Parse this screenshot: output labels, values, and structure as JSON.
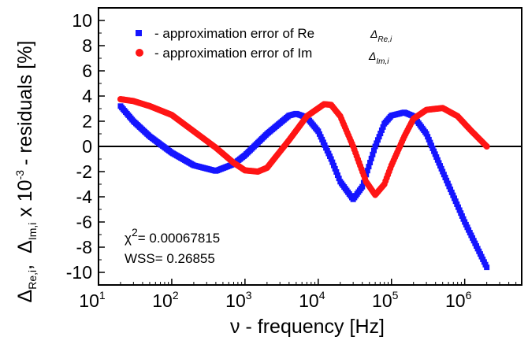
{
  "chart_data": {
    "type": "scatter",
    "x_scale": "log",
    "xlim": [
      10,
      6000000
    ],
    "ylim": [
      -11,
      11
    ],
    "xlabel": "ν - frequency   [Hz]",
    "ylabel": "Δ_Re,i ,  Δ_Im,i x 10^-3 - residuals  [%]",
    "ylabel_parts": {
      "re_main": "Δ",
      "re_sub": "Re,i",
      "sep": ",",
      "im_main": "Δ",
      "im_sub": "Im,i",
      "mid": " x 10",
      "exp": "-3",
      "tail": "- residuals  [%]"
    },
    "x_ticks": [
      {
        "value": 10,
        "base": "10",
        "exp": "1"
      },
      {
        "value": 100,
        "base": "10",
        "exp": "2"
      },
      {
        "value": 1000,
        "base": "10",
        "exp": "3"
      },
      {
        "value": 10000,
        "base": "10",
        "exp": "4"
      },
      {
        "value": 100000,
        "base": "10",
        "exp": "5"
      },
      {
        "value": 1000000,
        "base": "10",
        "exp": "6"
      }
    ],
    "y_ticks": [
      {
        "value": 10,
        "label": "10"
      },
      {
        "value": 8,
        "label": "8"
      },
      {
        "value": 6,
        "label": "6"
      },
      {
        "value": 4,
        "label": "4"
      },
      {
        "value": 2,
        "label": "2"
      },
      {
        "value": 0,
        "label": "0"
      },
      {
        "value": -2,
        "label": "-2"
      },
      {
        "value": -4,
        "label": "-4"
      },
      {
        "value": -6,
        "label": "-6"
      },
      {
        "value": -8,
        "label": "-8"
      },
      {
        "value": -10,
        "label": "-10"
      }
    ],
    "zero_line": 0,
    "legend_position": "top-left",
    "series": [
      {
        "name": "-  approximation error of Re",
        "symbol_main": "Δ",
        "symbol_sub": "Re,i",
        "marker": "square",
        "color": "#1515ff",
        "points": [
          [
            20,
            3.2
          ],
          [
            30,
            2.0
          ],
          [
            50,
            0.8
          ],
          [
            100,
            -0.5
          ],
          [
            200,
            -1.5
          ],
          [
            400,
            -1.95
          ],
          [
            700,
            -1.4
          ],
          [
            1000,
            -0.7
          ],
          [
            2000,
            1.0
          ],
          [
            4000,
            2.45
          ],
          [
            5000,
            2.6
          ],
          [
            7000,
            2.3
          ],
          [
            10000,
            1.2
          ],
          [
            15000,
            -1.0
          ],
          [
            20000,
            -2.8
          ],
          [
            30000,
            -4.2
          ],
          [
            40000,
            -3.2
          ],
          [
            60000,
            0.0
          ],
          [
            80000,
            1.8
          ],
          [
            100000,
            2.45
          ],
          [
            150000,
            2.7
          ],
          [
            200000,
            2.4
          ],
          [
            300000,
            1.0
          ],
          [
            500000,
            -2.0
          ],
          [
            1000000,
            -6.0
          ],
          [
            2000000,
            -9.6
          ]
        ]
      },
      {
        "name": "-  approximation error of Im",
        "symbol_main": "Δ",
        "symbol_sub": "Im,i",
        "marker": "circle",
        "color": "#ff1515",
        "points": [
          [
            20,
            3.75
          ],
          [
            30,
            3.6
          ],
          [
            50,
            3.2
          ],
          [
            100,
            2.5
          ],
          [
            200,
            1.2
          ],
          [
            400,
            -0.1
          ],
          [
            700,
            -1.3
          ],
          [
            1000,
            -1.9
          ],
          [
            1500,
            -2.0
          ],
          [
            2000,
            -1.7
          ],
          [
            4000,
            0.5
          ],
          [
            7000,
            2.4
          ],
          [
            12000,
            3.35
          ],
          [
            15000,
            3.3
          ],
          [
            20000,
            2.4
          ],
          [
            30000,
            0.0
          ],
          [
            45000,
            -2.8
          ],
          [
            60000,
            -3.85
          ],
          [
            80000,
            -3.0
          ],
          [
            100000,
            -1.5
          ],
          [
            150000,
            0.8
          ],
          [
            200000,
            2.2
          ],
          [
            300000,
            2.9
          ],
          [
            500000,
            3.05
          ],
          [
            800000,
            2.4
          ],
          [
            1200000,
            1.3
          ],
          [
            2000000,
            0.0
          ]
        ]
      }
    ],
    "annotations": {
      "chi_prefix": "χ",
      "chi_exp": "2",
      "chi_value": "= 0.00067815",
      "wss": "WSS= 0.26855"
    }
  }
}
